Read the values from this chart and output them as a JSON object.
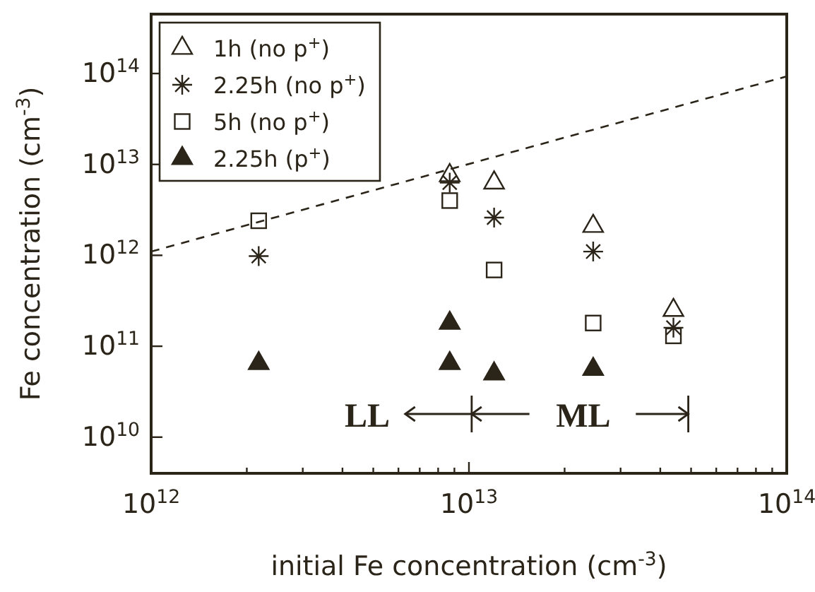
{
  "chart_data": {
    "type": "scatter",
    "xlabel": "initial Fe concentration (cm$^{-3}$)",
    "ylabel": "Fe concentration (cm$^{-3}$)",
    "log": "xy",
    "xlim": [
      1000000000000.0,
      100000000000000.0
    ],
    "ylim": [
      4000000000.0,
      450000000000000.0
    ],
    "xticks": [
      {
        "value": 1000000000000.0,
        "label": "10$^{12}$"
      },
      {
        "value": 2000000000000.0,
        "label": null
      },
      {
        "value": 3000000000000.0,
        "label": null
      },
      {
        "value": 4000000000000.0,
        "label": null
      },
      {
        "value": 5000000000000.0,
        "label": null
      },
      {
        "value": 6000000000000.0,
        "label": null
      },
      {
        "value": 7000000000000.0,
        "label": null
      },
      {
        "value": 8000000000000.0,
        "label": null
      },
      {
        "value": 9000000000000.0,
        "label": null
      },
      {
        "value": 10000000000000.0,
        "label": "10$^{13}$"
      },
      {
        "value": 20000000000000.0,
        "label": null
      },
      {
        "value": 30000000000000.0,
        "label": null
      },
      {
        "value": 40000000000000.0,
        "label": null
      },
      {
        "value": 50000000000000.0,
        "label": null
      },
      {
        "value": 60000000000000.0,
        "label": null
      },
      {
        "value": 70000000000000.0,
        "label": null
      },
      {
        "value": 80000000000000.0,
        "label": null
      },
      {
        "value": 90000000000000.0,
        "label": null
      },
      {
        "value": 100000000000000.0,
        "label": "10$^{14}$"
      }
    ],
    "yticks": [
      {
        "value": 10000000000.0,
        "label": "10$^{10}$"
      },
      {
        "value": 100000000000.0,
        "label": "10$^{11}$"
      },
      {
        "value": 1000000000000.0,
        "label": "10$^{12}$"
      },
      {
        "value": 10000000000000.0,
        "label": "10$^{13}$"
      },
      {
        "value": 100000000000000.0,
        "label": "10$^{14}$"
      }
    ],
    "grid": false,
    "legend": "top left",
    "series": [
      {
        "name": "1h (no p$^{+}$)",
        "color": "#2b2419",
        "marker": "triangle",
        "x": [
          8700000000000.0,
          12000000000000.0,
          24600000000000.0,
          44000000000000.0
        ],
        "values": [
          7600000000000.0,
          6300000000000.0,
          2100000000000.0,
          250000000000.0
        ]
      },
      {
        "name": "2.25h (no p$^{+}$)",
        "color": "#2b2419",
        "marker": "cross",
        "x": [
          2180000000000.0,
          8700000000000.0,
          12000000000000.0,
          24600000000000.0,
          44000000000000.0
        ],
        "values": [
          980000000000.0,
          6300000000000.0,
          2600000000000.0,
          1100000000000.0,
          160000000000.0
        ]
      },
      {
        "name": "5h (no p$^{+}$)",
        "color": "#2b2419",
        "marker": "square",
        "x": [
          2180000000000.0,
          8700000000000.0,
          12000000000000.0,
          24600000000000.0,
          44000000000000.0
        ],
        "values": [
          2400000000000.0,
          4000000000000.0,
          690000000000.0,
          180000000000.0,
          130000000000.0
        ]
      },
      {
        "name": "2.25h (p$^{+}$)",
        "color": "#2b2419",
        "marker": "triangle",
        "x": [
          2180000000000.0,
          8700000000000.0,
          8700000000000.0,
          12000000000000.0,
          24600000000000.0
        ],
        "values": [
          65000000000.0,
          180000000000.0,
          65000000000.0,
          50000000000.0,
          56000000000.0
        ]
      },
      {
        "type": "line",
        "color": "#2b2419",
        "marker": "none",
        "line_style": "dashed",
        "x": [
          1000000000000.0,
          100000000000000.0
        ],
        "values": [
          1100000000000.0,
          93000000000000.0
        ]
      }
    ],
    "annotations": [
      "LL",
      "ML"
    ]
  }
}
